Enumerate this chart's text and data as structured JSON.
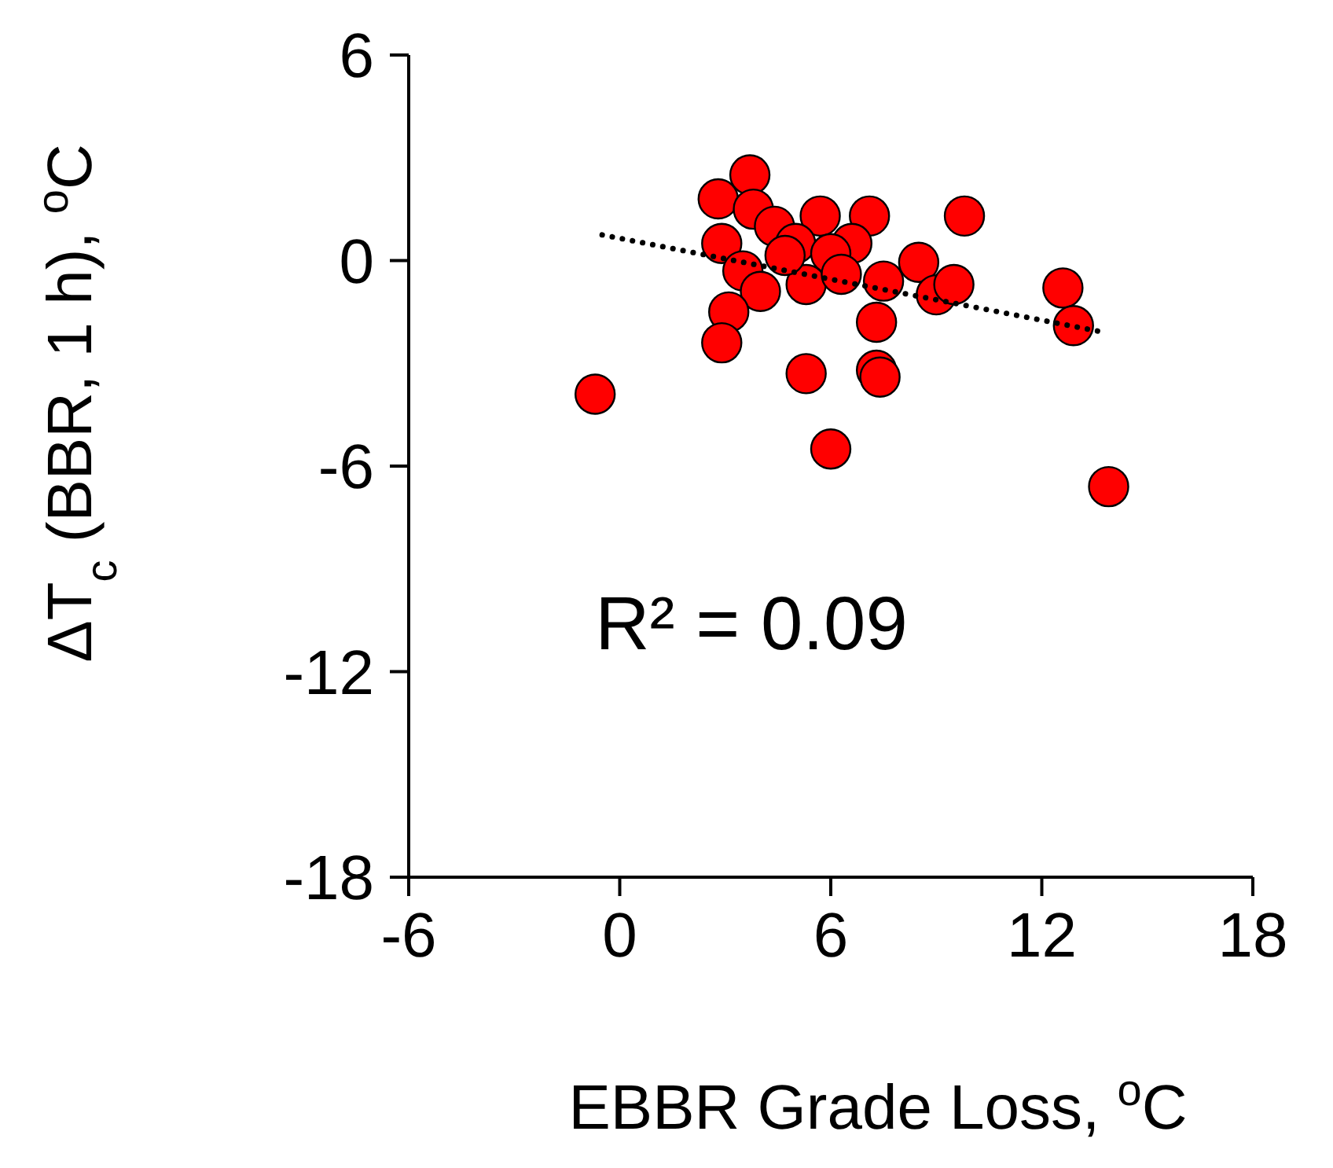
{
  "chart_data": {
    "type": "scatter",
    "xlabel": "EBBR Grade Loss, $^{o}$C",
    "ylabel": "ΔT$_{c}$ (BBR, 1 h), $^{o}$C",
    "annotations": [
      "R² = 0.09"
    ],
    "xlim": [
      -6,
      18
    ],
    "xticks": [
      -6,
      0,
      6,
      12,
      18
    ],
    "ylim": [
      -18,
      6
    ],
    "yticks": [
      -18,
      -12,
      -6,
      0,
      6
    ],
    "grid": false,
    "legend": false,
    "series": [
      {
        "color": "#ff0000",
        "marker": "circle",
        "x": [
          3.7,
          2.8,
          3.8,
          4.4,
          5.7,
          7.1,
          9.8,
          2.9,
          5.0,
          6.6,
          6.0,
          3.5,
          5.3,
          6.3,
          4.7,
          8.5,
          7.5,
          9.0,
          9.5,
          4.0,
          12.6,
          12.9,
          3.1,
          2.9,
          7.3,
          5.3,
          7.3,
          7.4,
          -0.7,
          6.0,
          13.9
        ],
        "values": [
          2.5,
          1.8,
          1.5,
          1.0,
          1.3,
          1.3,
          1.3,
          0.5,
          0.5,
          0.5,
          0.2,
          -0.3,
          -0.7,
          -0.4,
          0.15,
          -0.05,
          -0.6,
          -1.0,
          -0.7,
          -0.9,
          -0.8,
          -1.9,
          -1.5,
          -2.4,
          -1.8,
          -3.3,
          -3.2,
          -3.4,
          -3.9,
          -5.5,
          -6.6
        ]
      },
      {
        "type": "line",
        "color": "#000000",
        "marker": "none",
        "line_style": "dotted",
        "x": [
          -0.5,
          13.8
        ],
        "values": [
          0.75,
          -2.1
        ]
      }
    ]
  }
}
